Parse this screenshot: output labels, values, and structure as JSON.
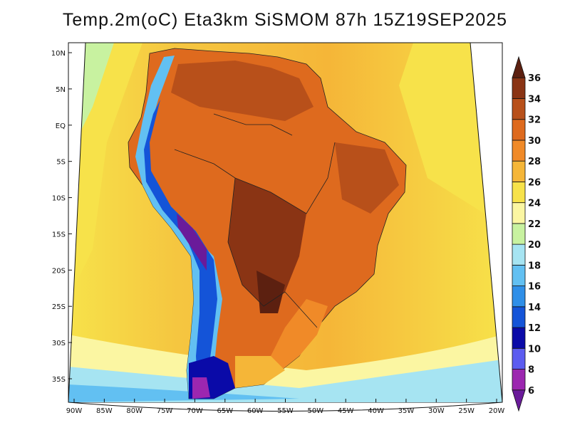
{
  "title": "Temp.2m(oC) Eta3km SiSMOM 87h 15Z19SEP2025",
  "map": {
    "lon_range": [
      -90,
      -20
    ],
    "lat_range": [
      -38,
      12
    ],
    "lat_ticks": [
      {
        "value": 10,
        "label": "10N"
      },
      {
        "value": 5,
        "label": "5N"
      },
      {
        "value": 0,
        "label": "EQ"
      },
      {
        "value": -5,
        "label": "5S"
      },
      {
        "value": -10,
        "label": "10S"
      },
      {
        "value": -15,
        "label": "15S"
      },
      {
        "value": -20,
        "label": "20S"
      },
      {
        "value": -25,
        "label": "25S"
      },
      {
        "value": -30,
        "label": "30S"
      },
      {
        "value": -35,
        "label": "35S"
      }
    ],
    "lon_ticks": [
      {
        "value": -90,
        "label": "90W"
      },
      {
        "value": -85,
        "label": "85W"
      },
      {
        "value": -80,
        "label": "80W"
      },
      {
        "value": -75,
        "label": "75W"
      },
      {
        "value": -70,
        "label": "70W"
      },
      {
        "value": -65,
        "label": "65W"
      },
      {
        "value": -60,
        "label": "60W"
      },
      {
        "value": -55,
        "label": "55W"
      },
      {
        "value": -50,
        "label": "50W"
      },
      {
        "value": -45,
        "label": "45W"
      },
      {
        "value": -40,
        "label": "40W"
      },
      {
        "value": -35,
        "label": "35W"
      },
      {
        "value": -30,
        "label": "30W"
      },
      {
        "value": -25,
        "label": "25W"
      },
      {
        "value": -20,
        "label": "20W"
      }
    ]
  },
  "colorbar": {
    "unit": "oC",
    "levels": [
      "6",
      "8",
      "10",
      "12",
      "14",
      "16",
      "18",
      "20",
      "22",
      "24",
      "26",
      "28",
      "30",
      "32",
      "34",
      "36"
    ],
    "colors": [
      "#6a1b9a",
      "#9c27b0",
      "#5c5cf0",
      "#0a0aa8",
      "#1454d8",
      "#2f8fe8",
      "#62c0f2",
      "#a6e4f2",
      "#c8f2a0",
      "#fbf6a2",
      "#f7e24a",
      "#f5b638",
      "#f08a28",
      "#de6a1e",
      "#b8501a",
      "#8a3414",
      "#5c2010"
    ]
  },
  "colors": {
    "ocean_warm": "#f5b638",
    "ocean_mild": "#f7e24a",
    "land_hot": "#de6a1e",
    "land_very_hot": "#b8501a",
    "andes_cold": "#2f8fe8",
    "border": "#1a1a1a"
  }
}
